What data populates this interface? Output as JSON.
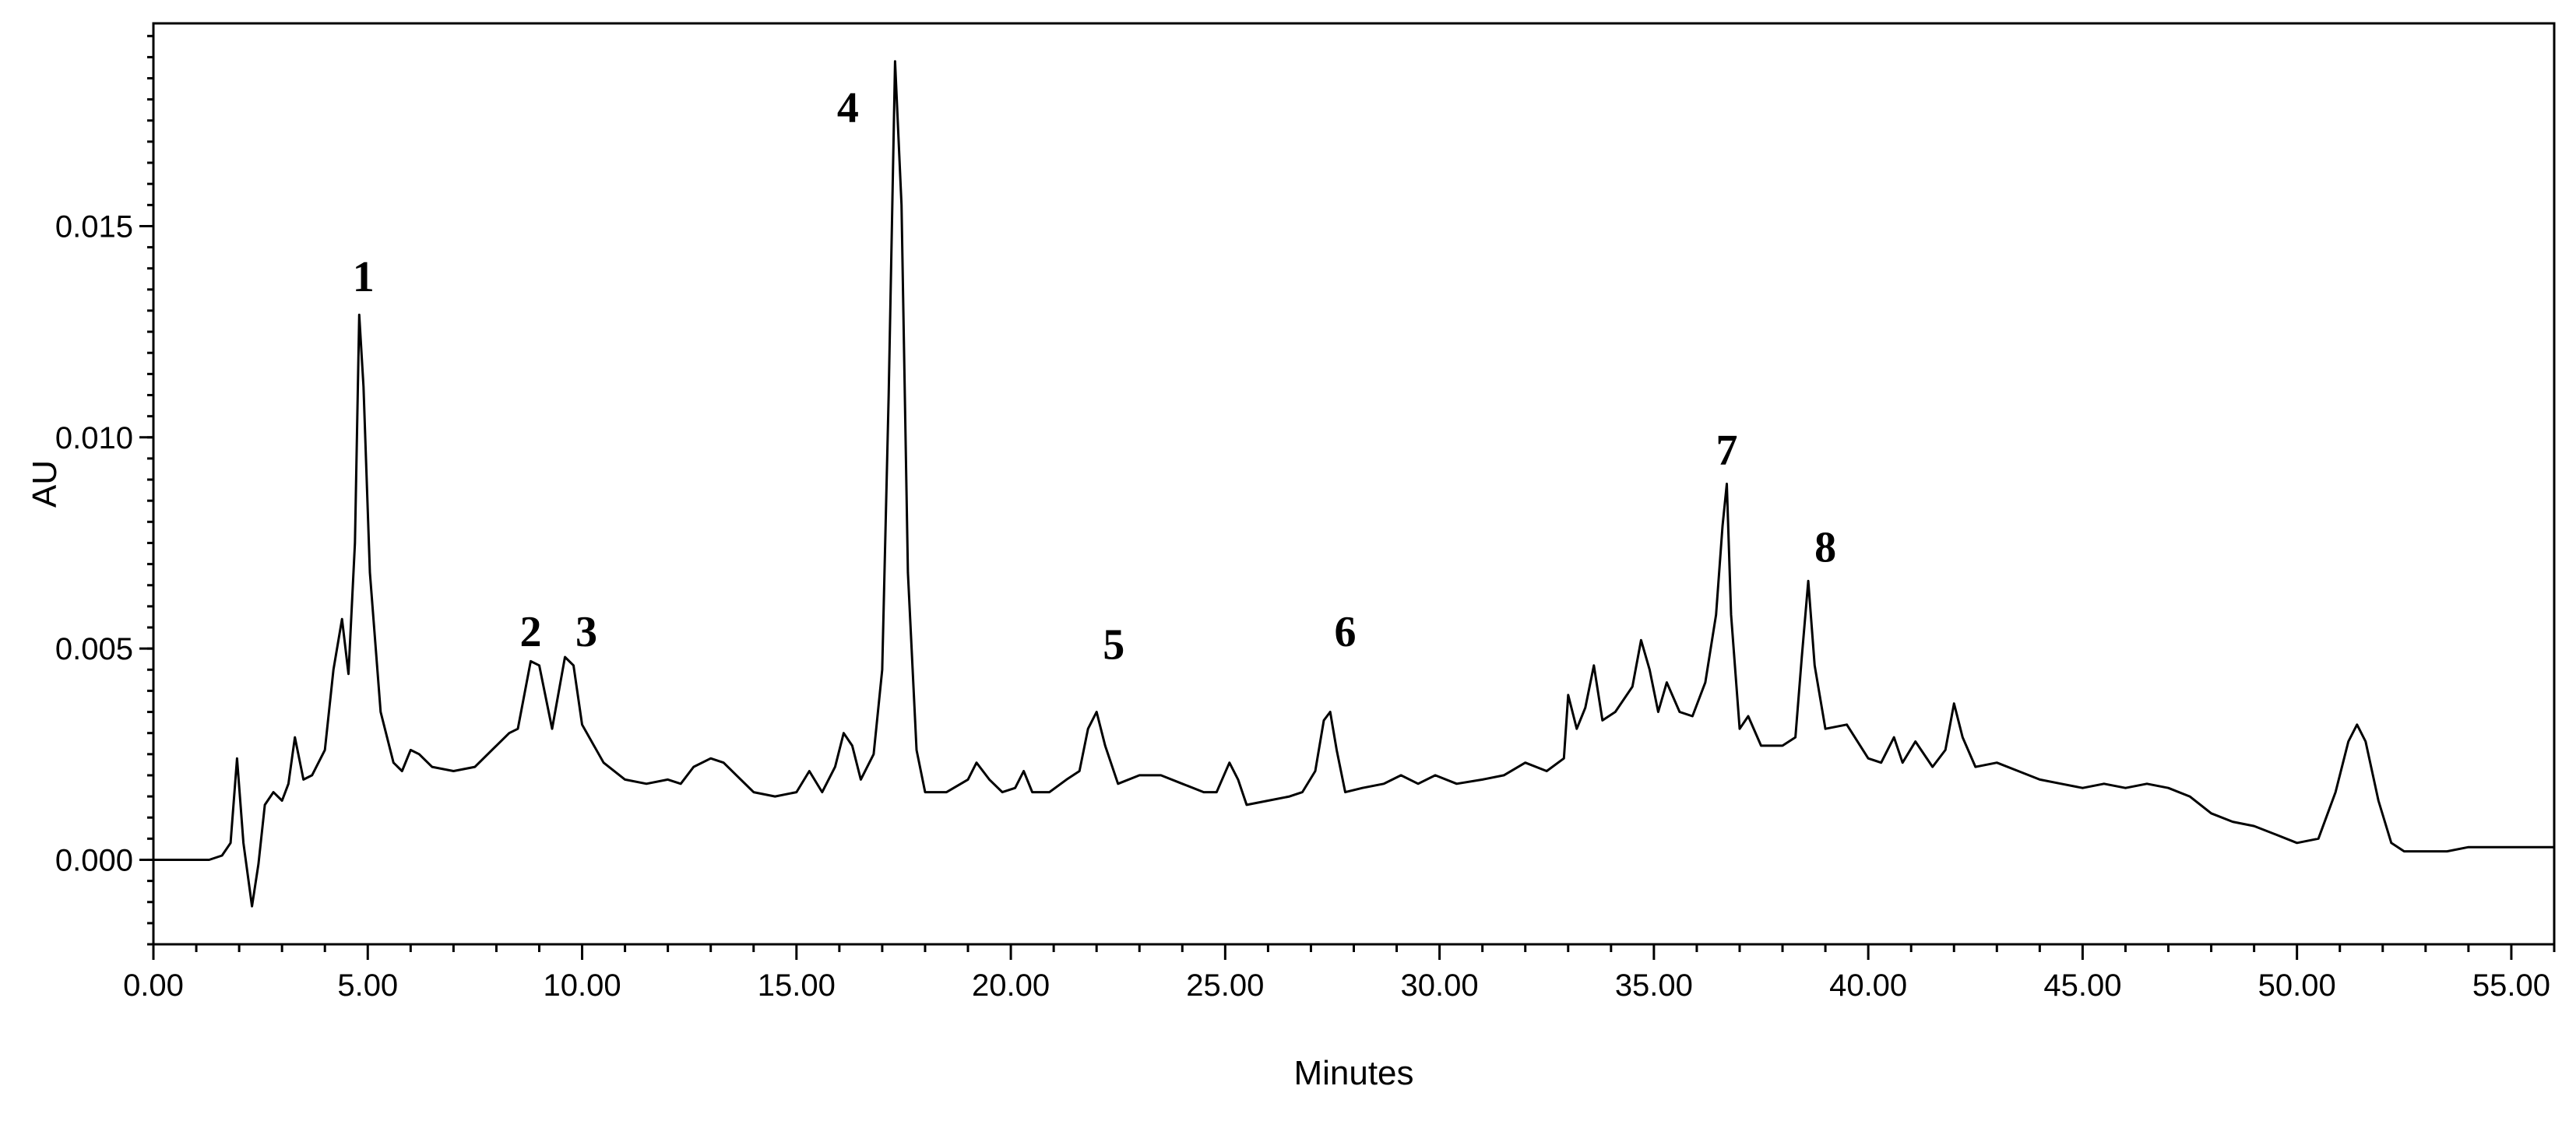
{
  "chart_data": {
    "type": "line",
    "xlabel": "Minutes",
    "ylabel": "AU",
    "xlim": [
      0,
      56
    ],
    "ylim": [
      -0.002,
      0.0198
    ],
    "x_ticks": [
      {
        "value": 0,
        "label": "0.00"
      },
      {
        "value": 5,
        "label": "5.00"
      },
      {
        "value": 10,
        "label": "10.00"
      },
      {
        "value": 15,
        "label": "15.00"
      },
      {
        "value": 20,
        "label": "20.00"
      },
      {
        "value": 25,
        "label": "25.00"
      },
      {
        "value": 30,
        "label": "30.00"
      },
      {
        "value": 35,
        "label": "35.00"
      },
      {
        "value": 40,
        "label": "40.00"
      },
      {
        "value": 45,
        "label": "45.00"
      },
      {
        "value": 50,
        "label": "50.00"
      },
      {
        "value": 55,
        "label": "55.00"
      }
    ],
    "y_ticks": [
      {
        "value": 0.0,
        "label": "0.000"
      },
      {
        "value": 0.005,
        "label": "0.005"
      },
      {
        "value": 0.01,
        "label": "0.010"
      },
      {
        "value": 0.015,
        "label": "0.015"
      }
    ],
    "annotations": [
      {
        "label": "1",
        "x": 4.9,
        "y": 0.0132
      },
      {
        "label": "2",
        "x": 8.8,
        "y": 0.0048
      },
      {
        "label": "3",
        "x": 10.1,
        "y": 0.0048
      },
      {
        "label": "4",
        "x": 16.2,
        "y": 0.0172
      },
      {
        "label": "5",
        "x": 22.4,
        "y": 0.0045
      },
      {
        "label": "6",
        "x": 27.8,
        "y": 0.0048
      },
      {
        "label": "7",
        "x": 36.7,
        "y": 0.0091
      },
      {
        "label": "8",
        "x": 39.0,
        "y": 0.0068
      }
    ],
    "series": [
      {
        "values": [
          [
            0.0,
            0.0
          ],
          [
            1.3,
            0.0
          ],
          [
            1.6,
            0.0001
          ],
          [
            1.8,
            0.0004
          ],
          [
            1.95,
            0.0024
          ],
          [
            2.1,
            0.0004
          ],
          [
            2.3,
            -0.0011
          ],
          [
            2.45,
            -0.0001
          ],
          [
            2.6,
            0.0013
          ],
          [
            2.8,
            0.0016
          ],
          [
            3.0,
            0.0014
          ],
          [
            3.15,
            0.0018
          ],
          [
            3.3,
            0.0029
          ],
          [
            3.5,
            0.0019
          ],
          [
            3.7,
            0.002
          ],
          [
            4.0,
            0.0026
          ],
          [
            4.2,
            0.0045
          ],
          [
            4.4,
            0.0057
          ],
          [
            4.55,
            0.0044
          ],
          [
            4.7,
            0.0075
          ],
          [
            4.8,
            0.0129
          ],
          [
            4.9,
            0.0112
          ],
          [
            5.05,
            0.0068
          ],
          [
            5.3,
            0.0035
          ],
          [
            5.6,
            0.0023
          ],
          [
            5.8,
            0.0021
          ],
          [
            6.0,
            0.0026
          ],
          [
            6.2,
            0.0025
          ],
          [
            6.5,
            0.0022
          ],
          [
            7.0,
            0.0021
          ],
          [
            7.5,
            0.0022
          ],
          [
            8.0,
            0.0027
          ],
          [
            8.3,
            0.003
          ],
          [
            8.5,
            0.0031
          ],
          [
            8.8,
            0.0047
          ],
          [
            9.0,
            0.0046
          ],
          [
            9.3,
            0.0031
          ],
          [
            9.6,
            0.0048
          ],
          [
            9.8,
            0.0046
          ],
          [
            10.0,
            0.0032
          ],
          [
            10.5,
            0.0023
          ],
          [
            11.0,
            0.0019
          ],
          [
            11.5,
            0.0018
          ],
          [
            12.0,
            0.0019
          ],
          [
            12.3,
            0.0018
          ],
          [
            12.6,
            0.0022
          ],
          [
            13.0,
            0.0024
          ],
          [
            13.3,
            0.0023
          ],
          [
            13.6,
            0.002
          ],
          [
            14.0,
            0.0016
          ],
          [
            14.5,
            0.0015
          ],
          [
            15.0,
            0.0016
          ],
          [
            15.3,
            0.0021
          ],
          [
            15.6,
            0.0016
          ],
          [
            15.9,
            0.0022
          ],
          [
            16.1,
            0.003
          ],
          [
            16.3,
            0.0027
          ],
          [
            16.5,
            0.0019
          ],
          [
            16.8,
            0.0025
          ],
          [
            17.0,
            0.0045
          ],
          [
            17.15,
            0.011
          ],
          [
            17.3,
            0.0189
          ],
          [
            17.45,
            0.0155
          ],
          [
            17.6,
            0.0068
          ],
          [
            17.8,
            0.0026
          ],
          [
            18.0,
            0.0016
          ],
          [
            18.5,
            0.0016
          ],
          [
            19.0,
            0.0019
          ],
          [
            19.2,
            0.0023
          ],
          [
            19.5,
            0.0019
          ],
          [
            19.8,
            0.0016
          ],
          [
            20.1,
            0.0017
          ],
          [
            20.3,
            0.0021
          ],
          [
            20.5,
            0.0016
          ],
          [
            20.9,
            0.0016
          ],
          [
            21.3,
            0.0019
          ],
          [
            21.6,
            0.0021
          ],
          [
            21.8,
            0.0031
          ],
          [
            22.0,
            0.0035
          ],
          [
            22.2,
            0.0027
          ],
          [
            22.5,
            0.0018
          ],
          [
            23.0,
            0.002
          ],
          [
            23.5,
            0.002
          ],
          [
            24.0,
            0.0018
          ],
          [
            24.5,
            0.0016
          ],
          [
            24.8,
            0.0016
          ],
          [
            25.1,
            0.0023
          ],
          [
            25.3,
            0.0019
          ],
          [
            25.5,
            0.0013
          ],
          [
            26.0,
            0.0014
          ],
          [
            26.5,
            0.0015
          ],
          [
            26.8,
            0.0016
          ],
          [
            27.1,
            0.0021
          ],
          [
            27.3,
            0.0033
          ],
          [
            27.45,
            0.0035
          ],
          [
            27.6,
            0.0026
          ],
          [
            27.8,
            0.0016
          ],
          [
            28.2,
            0.0017
          ],
          [
            28.7,
            0.0018
          ],
          [
            29.1,
            0.002
          ],
          [
            29.5,
            0.0018
          ],
          [
            29.9,
            0.002
          ],
          [
            30.4,
            0.0018
          ],
          [
            31.0,
            0.0019
          ],
          [
            31.5,
            0.002
          ],
          [
            32.0,
            0.0023
          ],
          [
            32.5,
            0.0021
          ],
          [
            32.9,
            0.0024
          ],
          [
            33.0,
            0.0039
          ],
          [
            33.2,
            0.0031
          ],
          [
            33.4,
            0.0036
          ],
          [
            33.6,
            0.0046
          ],
          [
            33.8,
            0.0033
          ],
          [
            34.1,
            0.0035
          ],
          [
            34.5,
            0.0041
          ],
          [
            34.7,
            0.0052
          ],
          [
            34.9,
            0.0045
          ],
          [
            35.1,
            0.0035
          ],
          [
            35.3,
            0.0042
          ],
          [
            35.6,
            0.0035
          ],
          [
            35.9,
            0.0034
          ],
          [
            36.2,
            0.0042
          ],
          [
            36.45,
            0.0058
          ],
          [
            36.6,
            0.0079
          ],
          [
            36.7,
            0.0089
          ],
          [
            36.8,
            0.0058
          ],
          [
            37.0,
            0.0031
          ],
          [
            37.2,
            0.0034
          ],
          [
            37.5,
            0.0027
          ],
          [
            38.0,
            0.0027
          ],
          [
            38.3,
            0.0029
          ],
          [
            38.45,
            0.0048
          ],
          [
            38.6,
            0.0066
          ],
          [
            38.75,
            0.0046
          ],
          [
            39.0,
            0.0031
          ],
          [
            39.5,
            0.0032
          ],
          [
            40.0,
            0.0024
          ],
          [
            40.3,
            0.0023
          ],
          [
            40.6,
            0.0029
          ],
          [
            40.8,
            0.0023
          ],
          [
            41.1,
            0.0028
          ],
          [
            41.5,
            0.0022
          ],
          [
            41.8,
            0.0026
          ],
          [
            42.0,
            0.0037
          ],
          [
            42.2,
            0.0029
          ],
          [
            42.5,
            0.0022
          ],
          [
            43.0,
            0.0023
          ],
          [
            43.5,
            0.0021
          ],
          [
            44.0,
            0.0019
          ],
          [
            44.5,
            0.0018
          ],
          [
            45.0,
            0.0017
          ],
          [
            45.5,
            0.0018
          ],
          [
            46.0,
            0.0017
          ],
          [
            46.5,
            0.0018
          ],
          [
            47.0,
            0.0017
          ],
          [
            47.5,
            0.0015
          ],
          [
            48.0,
            0.0011
          ],
          [
            48.5,
            0.0009
          ],
          [
            49.0,
            0.0008
          ],
          [
            49.5,
            0.0006
          ],
          [
            50.0,
            0.0004
          ],
          [
            50.5,
            0.0005
          ],
          [
            50.9,
            0.0016
          ],
          [
            51.2,
            0.0028
          ],
          [
            51.4,
            0.0032
          ],
          [
            51.6,
            0.0028
          ],
          [
            51.9,
            0.0014
          ],
          [
            52.2,
            0.0004
          ],
          [
            52.5,
            0.0002
          ],
          [
            53.0,
            0.0002
          ],
          [
            53.5,
            0.0002
          ],
          [
            54.0,
            0.0003
          ],
          [
            54.5,
            0.0003
          ],
          [
            55.0,
            0.0003
          ],
          [
            55.5,
            0.0003
          ],
          [
            56.0,
            0.0003
          ]
        ]
      }
    ]
  }
}
